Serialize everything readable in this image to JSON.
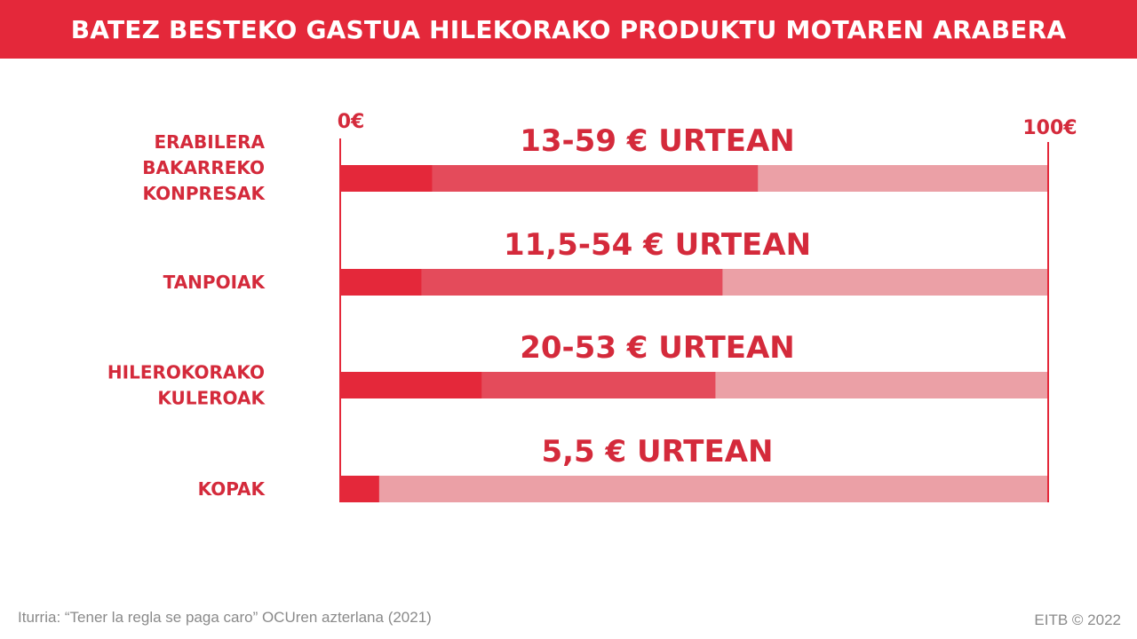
{
  "header": {
    "title": "BATEZ BESTEKO GASTUA HILEKORAKO PRODUKTU MOTAREN ARABERA"
  },
  "chart_data": {
    "type": "bar",
    "orientation": "horizontal",
    "xlim": [
      0,
      100
    ],
    "axis_min_label": "0€",
    "axis_max_label": "100€",
    "categories": [
      [
        "ERABILERA",
        "BAKARREKO",
        "KONPRESAK"
      ],
      [
        "TANPOIAK"
      ],
      [
        "HILEROKORAKO",
        "KULEROAK"
      ],
      [
        "KOPAK"
      ]
    ],
    "ranges": [
      {
        "min": 13,
        "max": 59,
        "label": "13-59 € URTEAN"
      },
      {
        "min": 11.5,
        "max": 54,
        "label": "11,5-54 € URTEAN"
      },
      {
        "min": 20,
        "max": 53,
        "label": "20-53 € URTEAN"
      },
      {
        "min": 5.5,
        "max": 5.5,
        "label": "5,5 € URTEAN"
      }
    ],
    "grid": false,
    "legend": "none",
    "colors": {
      "min_segment": "#e4283a",
      "range_segment": "#e44b5b",
      "remainder": "#eba0a6",
      "axis": "#e4283a",
      "label": "#d42a3b"
    }
  },
  "footer": {
    "source": "Iturria: “Tener la regla se paga caro” OCUren azterlana (2021)",
    "credit": "EITB © 2022"
  }
}
